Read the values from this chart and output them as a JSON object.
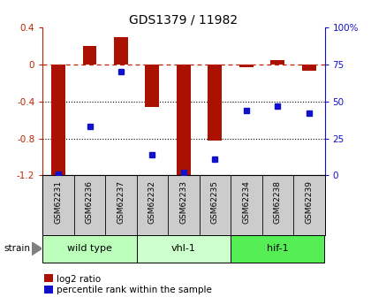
{
  "title": "GDS1379 / 11982",
  "samples": [
    "GSM62231",
    "GSM62236",
    "GSM62237",
    "GSM62232",
    "GSM62233",
    "GSM62235",
    "GSM62234",
    "GSM62238",
    "GSM62239"
  ],
  "log2_ratio": [
    -1.2,
    0.2,
    0.3,
    -0.46,
    -1.2,
    -0.82,
    -0.03,
    0.05,
    -0.07
  ],
  "percentile_rank": [
    1,
    33,
    70,
    14,
    2,
    11,
    44,
    47,
    42
  ],
  "groups": [
    {
      "label": "wild type",
      "start": 0,
      "end": 3,
      "color": "#bbffbb"
    },
    {
      "label": "vhl-1",
      "start": 3,
      "end": 6,
      "color": "#ccffcc"
    },
    {
      "label": "hif-1",
      "start": 6,
      "end": 9,
      "color": "#55ee55"
    }
  ],
  "ylim_left": [
    -1.2,
    0.4
  ],
  "ylim_right": [
    0,
    100
  ],
  "yticks_left": [
    -1.2,
    -0.8,
    -0.4,
    0.0,
    0.4
  ],
  "ytick_labels_left": [
    "-1.2",
    "-0.8",
    "-0.4",
    "0",
    "0.4"
  ],
  "yticks_right": [
    0,
    25,
    50,
    75,
    100
  ],
  "ytick_labels_right": [
    "0",
    "25",
    "50",
    "75",
    "100%"
  ],
  "bar_color": "#aa1100",
  "dot_color": "#1111cc",
  "dashed_line_color": "#bb2200",
  "bg_color": "#ffffff",
  "plot_bg_color": "#ffffff",
  "label_bg_color": "#cccccc",
  "legend_bar_label": "log2 ratio",
  "legend_dot_label": "percentile rank within the sample",
  "strain_label": "strain"
}
